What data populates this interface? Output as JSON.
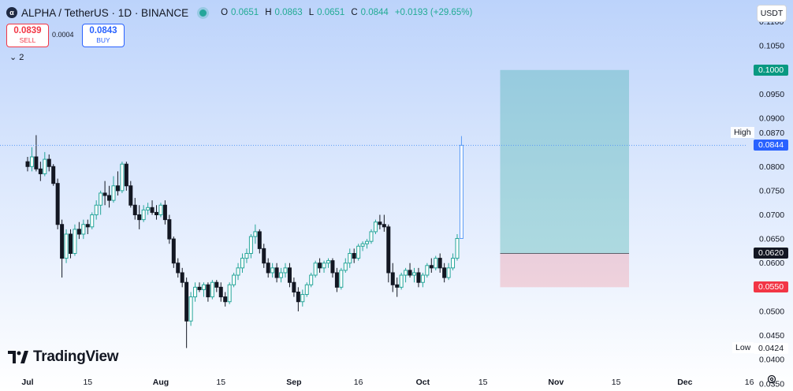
{
  "header": {
    "title": "ALPHA / TetherUS · 1D · BINANCE",
    "ohlc": {
      "o_label": "O",
      "o": "0.0651",
      "h_label": "H",
      "h": "0.0863",
      "l_label": "L",
      "l": "0.0651",
      "c_label": "C",
      "c": "0.0844",
      "change": "+0.0193 (+29.65%)"
    },
    "symbol_icon": "alpha-coin-icon"
  },
  "trade": {
    "sell_price": "0.0839",
    "sell_label": "SELL",
    "spread": "0.0004",
    "buy_price": "0.0843",
    "buy_label": "BUY"
  },
  "indicators": {
    "count": "2",
    "icon": "chevron-down-icon"
  },
  "currency": "USDT",
  "colors": {
    "up": "#26a69a",
    "down": "#131722",
    "last_bar": "#5b9cf6",
    "target_tag": "#089981",
    "stop_tag": "#f23645",
    "entry_tag": "#131722",
    "last_tag": "#2962ff"
  },
  "price_tags": {
    "target": "0.1000",
    "last": "0.0844",
    "entry": "0.0620",
    "stop": "0.0550",
    "low": "0.0424"
  },
  "labels": {
    "high": "High",
    "low": "Low"
  },
  "brand": "TradingView",
  "chart_data": {
    "type": "candlestick",
    "y_axis_ticks": [
      "0.1100",
      "0.1050",
      "0.1000",
      "0.0950",
      "0.0900",
      "0.0870",
      "0.0800",
      "0.0750",
      "0.0700",
      "0.0650",
      "0.0600",
      "0.0550",
      "0.0500",
      "0.0450",
      "0.0400",
      "0.0350"
    ],
    "y_axis_tick_values": [
      0.11,
      0.105,
      0.1,
      0.095,
      0.09,
      0.087,
      0.08,
      0.075,
      0.07,
      0.065,
      0.06,
      0.055,
      0.05,
      0.045,
      0.04,
      0.035
    ],
    "ylim": [
      0.0335,
      0.1145
    ],
    "x_axis_ticks": [
      {
        "label": "Jul",
        "day": 0
      },
      {
        "label": "15",
        "day": 14
      },
      {
        "label": "Aug",
        "day": 31
      },
      {
        "label": "15",
        "day": 45
      },
      {
        "label": "Sep",
        "day": 62
      },
      {
        "label": "16",
        "day": 77
      },
      {
        "label": "Oct",
        "day": 92
      },
      {
        "label": "15",
        "day": 106
      },
      {
        "label": "Nov",
        "day": 123
      },
      {
        "label": "15",
        "day": 137
      },
      {
        "label": "Dec",
        "day": 153
      },
      {
        "label": "16",
        "day": 168
      }
    ],
    "candles": [
      [
        0.081,
        0.082,
        0.079,
        0.08
      ],
      [
        0.08,
        0.084,
        0.079,
        0.082
      ],
      [
        0.082,
        0.0865,
        0.079,
        0.0795
      ],
      [
        0.0795,
        0.081,
        0.077,
        0.0785
      ],
      [
        0.0785,
        0.083,
        0.078,
        0.0815
      ],
      [
        0.0815,
        0.0825,
        0.079,
        0.08
      ],
      [
        0.08,
        0.0805,
        0.076,
        0.0765
      ],
      [
        0.0765,
        0.0775,
        0.067,
        0.068
      ],
      [
        0.068,
        0.069,
        0.057,
        0.061
      ],
      [
        0.061,
        0.067,
        0.06,
        0.066
      ],
      [
        0.066,
        0.067,
        0.061,
        0.062
      ],
      [
        0.062,
        0.068,
        0.0615,
        0.067
      ],
      [
        0.067,
        0.0685,
        0.065,
        0.066
      ],
      [
        0.066,
        0.069,
        0.065,
        0.068
      ],
      [
        0.068,
        0.069,
        0.066,
        0.0675
      ],
      [
        0.0675,
        0.0705,
        0.067,
        0.07
      ],
      [
        0.07,
        0.073,
        0.069,
        0.072
      ],
      [
        0.072,
        0.075,
        0.07,
        0.0745
      ],
      [
        0.0745,
        0.077,
        0.072,
        0.074
      ],
      [
        0.074,
        0.076,
        0.0715,
        0.073
      ],
      [
        0.073,
        0.078,
        0.0725,
        0.076
      ],
      [
        0.076,
        0.079,
        0.074,
        0.075
      ],
      [
        0.075,
        0.081,
        0.0745,
        0.0805
      ],
      [
        0.0805,
        0.081,
        0.075,
        0.076
      ],
      [
        0.076,
        0.077,
        0.0715,
        0.072
      ],
      [
        0.072,
        0.0735,
        0.069,
        0.07
      ],
      [
        0.07,
        0.072,
        0.067,
        0.069
      ],
      [
        0.069,
        0.072,
        0.0685,
        0.071
      ],
      [
        0.071,
        0.0725,
        0.07,
        0.0715
      ],
      [
        0.0715,
        0.073,
        0.07,
        0.0705
      ],
      [
        0.0705,
        0.072,
        0.069,
        0.07
      ],
      [
        0.07,
        0.0725,
        0.0695,
        0.072
      ],
      [
        0.072,
        0.073,
        0.068,
        0.069
      ],
      [
        0.069,
        0.07,
        0.064,
        0.065
      ],
      [
        0.065,
        0.0655,
        0.059,
        0.06
      ],
      [
        0.06,
        0.061,
        0.057,
        0.058
      ],
      [
        0.058,
        0.059,
        0.055,
        0.056
      ],
      [
        0.056,
        0.057,
        0.0424,
        0.048
      ],
      [
        0.048,
        0.054,
        0.047,
        0.053
      ],
      [
        0.053,
        0.056,
        0.052,
        0.055
      ],
      [
        0.055,
        0.056,
        0.054,
        0.0545
      ],
      [
        0.0545,
        0.056,
        0.053,
        0.0555
      ],
      [
        0.0555,
        0.056,
        0.052,
        0.053
      ],
      [
        0.053,
        0.0565,
        0.0525,
        0.056
      ],
      [
        0.056,
        0.0565,
        0.054,
        0.055
      ],
      [
        0.055,
        0.056,
        0.052,
        0.053
      ],
      [
        0.053,
        0.054,
        0.051,
        0.052
      ],
      [
        0.052,
        0.056,
        0.0515,
        0.0555
      ],
      [
        0.0555,
        0.058,
        0.055,
        0.0575
      ],
      [
        0.0575,
        0.06,
        0.0565,
        0.059
      ],
      [
        0.059,
        0.062,
        0.058,
        0.061
      ],
      [
        0.061,
        0.063,
        0.06,
        0.062
      ],
      [
        0.062,
        0.066,
        0.061,
        0.0655
      ],
      [
        0.0655,
        0.068,
        0.064,
        0.0665
      ],
      [
        0.0665,
        0.067,
        0.062,
        0.063
      ],
      [
        0.063,
        0.064,
        0.059,
        0.06
      ],
      [
        0.06,
        0.061,
        0.057,
        0.058
      ],
      [
        0.058,
        0.06,
        0.057,
        0.059
      ],
      [
        0.059,
        0.06,
        0.056,
        0.057
      ],
      [
        0.057,
        0.059,
        0.056,
        0.058
      ],
      [
        0.058,
        0.06,
        0.057,
        0.059
      ],
      [
        0.059,
        0.06,
        0.055,
        0.056
      ],
      [
        0.056,
        0.057,
        0.053,
        0.054
      ],
      [
        0.054,
        0.055,
        0.05,
        0.052
      ],
      [
        0.052,
        0.0545,
        0.051,
        0.0535
      ],
      [
        0.0535,
        0.056,
        0.053,
        0.0555
      ],
      [
        0.0555,
        0.058,
        0.055,
        0.0575
      ],
      [
        0.0575,
        0.0605,
        0.057,
        0.06
      ],
      [
        0.06,
        0.061,
        0.058,
        0.059
      ],
      [
        0.059,
        0.0605,
        0.058,
        0.06
      ],
      [
        0.06,
        0.061,
        0.059,
        0.0605
      ],
      [
        0.0605,
        0.061,
        0.057,
        0.058
      ],
      [
        0.058,
        0.059,
        0.054,
        0.055
      ],
      [
        0.055,
        0.059,
        0.0545,
        0.0585
      ],
      [
        0.0585,
        0.061,
        0.058,
        0.06
      ],
      [
        0.06,
        0.063,
        0.059,
        0.062
      ],
      [
        0.062,
        0.063,
        0.06,
        0.061
      ],
      [
        0.061,
        0.064,
        0.0605,
        0.0635
      ],
      [
        0.0635,
        0.0645,
        0.0625,
        0.064
      ],
      [
        0.064,
        0.065,
        0.063,
        0.0645
      ],
      [
        0.0645,
        0.067,
        0.064,
        0.0665
      ],
      [
        0.0665,
        0.069,
        0.066,
        0.0685
      ],
      [
        0.0685,
        0.07,
        0.067,
        0.068
      ],
      [
        0.068,
        0.07,
        0.0665,
        0.0675
      ],
      [
        0.0675,
        0.068,
        0.056,
        0.058
      ],
      [
        0.058,
        0.06,
        0.054,
        0.0555
      ],
      [
        0.0555,
        0.057,
        0.053,
        0.055
      ],
      [
        0.055,
        0.058,
        0.0545,
        0.0575
      ],
      [
        0.0575,
        0.059,
        0.056,
        0.0585
      ],
      [
        0.0585,
        0.06,
        0.057,
        0.0575
      ],
      [
        0.0575,
        0.059,
        0.056,
        0.058
      ],
      [
        0.058,
        0.059,
        0.055,
        0.056
      ],
      [
        0.056,
        0.058,
        0.055,
        0.0575
      ],
      [
        0.0575,
        0.06,
        0.057,
        0.0595
      ],
      [
        0.0595,
        0.061,
        0.058,
        0.059
      ],
      [
        0.059,
        0.0615,
        0.0585,
        0.061
      ],
      [
        0.061,
        0.062,
        0.058,
        0.059
      ],
      [
        0.059,
        0.06,
        0.056,
        0.057
      ],
      [
        0.057,
        0.06,
        0.0565,
        0.059
      ],
      [
        0.059,
        0.062,
        0.0585,
        0.061
      ],
      [
        0.061,
        0.066,
        0.0605,
        0.0651
      ],
      [
        0.0651,
        0.0863,
        0.0651,
        0.0844
      ]
    ],
    "position": {
      "target": 0.1,
      "entry": 0.062,
      "stop": 0.055,
      "start_day": 110,
      "end_day": 140
    },
    "high_marker": 0.087,
    "low_marker": 0.0424
  }
}
